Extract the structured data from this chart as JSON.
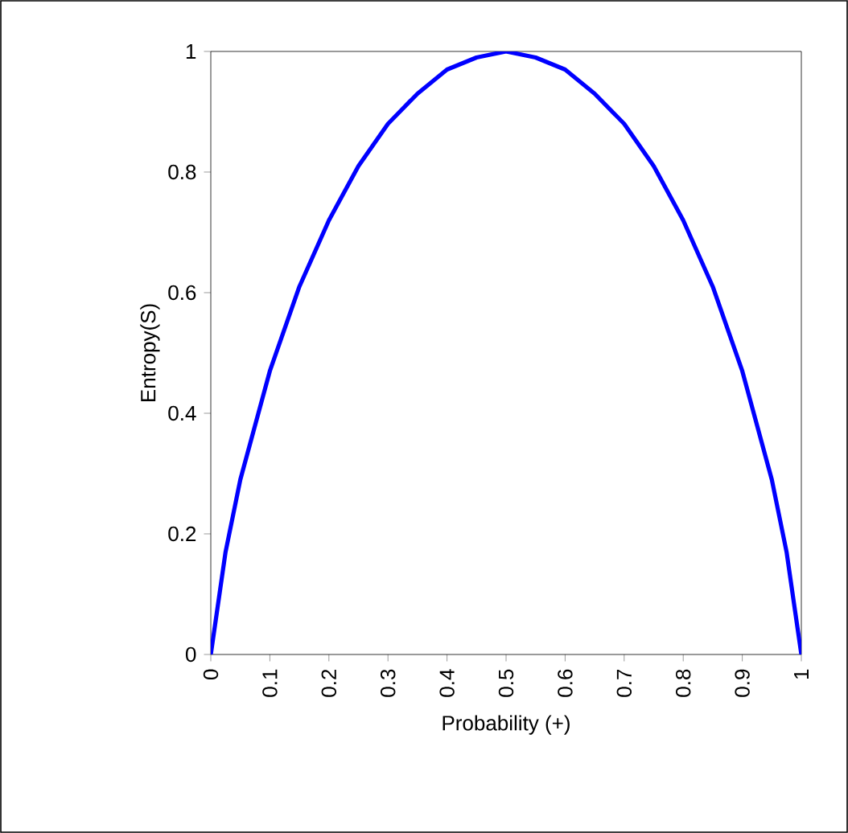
{
  "chart_data": {
    "type": "line",
    "xlabel": "Probability (+)",
    "ylabel": "Entropy(S)",
    "x": [
      0,
      0.025,
      0.05,
      0.1,
      0.15,
      0.2,
      0.25,
      0.3,
      0.35,
      0.4,
      0.45,
      0.5,
      0.55,
      0.6,
      0.65,
      0.7,
      0.75,
      0.8,
      0.85,
      0.9,
      0.95,
      0.975,
      1
    ],
    "series": [
      {
        "color": "#0000ff",
        "values": [
          0,
          0.17,
          0.29,
          0.47,
          0.61,
          0.72,
          0.81,
          0.88,
          0.93,
          0.97,
          0.99,
          1,
          0.99,
          0.97,
          0.93,
          0.88,
          0.81,
          0.72,
          0.61,
          0.47,
          0.29,
          0.17,
          0
        ]
      }
    ],
    "xlim": [
      0,
      1
    ],
    "ylim": [
      0,
      1
    ],
    "xticks": [
      0,
      0.1,
      0.2,
      0.3,
      0.4,
      0.5,
      0.6,
      0.7,
      0.8,
      0.9,
      1
    ],
    "yticks": [
      0,
      0.2,
      0.4,
      0.6,
      0.8,
      1
    ],
    "grid": false,
    "marker": "none",
    "line_style": "solid"
  }
}
